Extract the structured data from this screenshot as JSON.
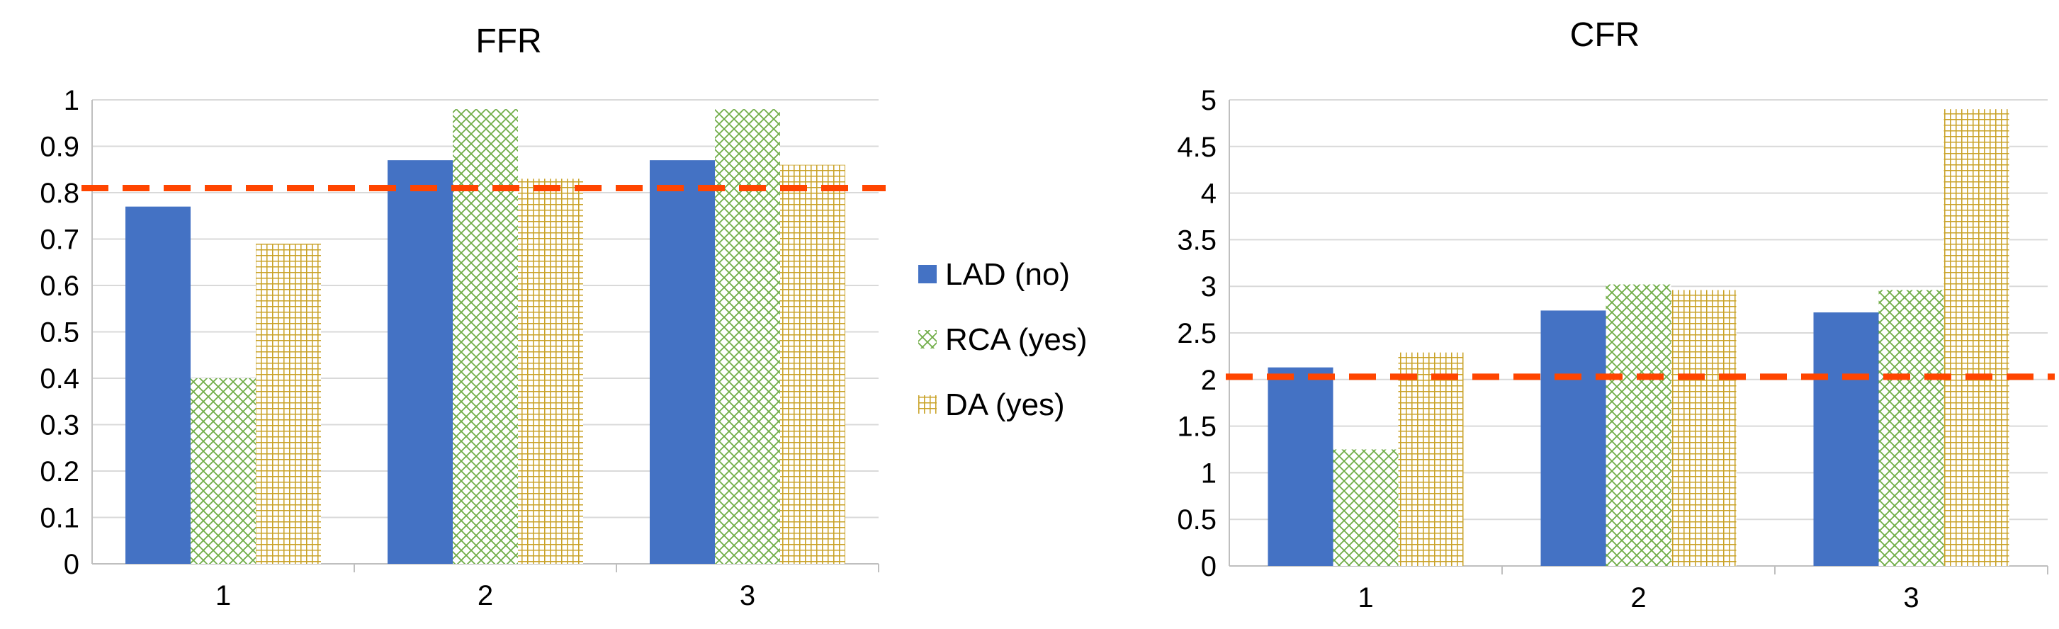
{
  "chart_data": [
    {
      "id": "ffr",
      "type": "bar",
      "title": "FFR",
      "xlabel": "",
      "ylabel": "",
      "categories": [
        "1",
        "2",
        "3"
      ],
      "ylim": [
        0,
        1
      ],
      "yticks": [
        "0",
        "0.1",
        "0.2",
        "0.3",
        "0.4",
        "0.5",
        "0.6",
        "0.7",
        "0.8",
        "0.9",
        "1"
      ],
      "grid": true,
      "threshold": 0.81,
      "series": [
        {
          "name": "LAD (no)",
          "values": [
            0.77,
            0.87,
            0.87
          ],
          "color": "#4472C4",
          "pattern": "solid"
        },
        {
          "name": "RCA (yes)",
          "values": [
            0.4,
            0.98,
            0.98
          ],
          "color": "#70AD47",
          "pattern": "diamond"
        },
        {
          "name": "DA (yes)",
          "values": [
            0.69,
            0.83,
            0.86
          ],
          "color": "#C9A227",
          "pattern": "grid"
        }
      ]
    },
    {
      "id": "cfr",
      "type": "bar",
      "title": "CFR",
      "xlabel": "",
      "ylabel": "",
      "categories": [
        "1",
        "2",
        "3"
      ],
      "ylim": [
        0,
        5
      ],
      "yticks": [
        "0",
        "0.5",
        "1",
        "1.5",
        "2",
        "2.5",
        "3",
        "3.5",
        "4",
        "4.5",
        "5"
      ],
      "grid": true,
      "threshold": 2.03,
      "series": [
        {
          "name": "LAD (no)",
          "values": [
            2.13,
            2.74,
            2.72
          ],
          "color": "#4472C4",
          "pattern": "solid"
        },
        {
          "name": "RCA (yes)",
          "values": [
            1.25,
            3.02,
            2.96
          ],
          "color": "#70AD47",
          "pattern": "diamond"
        },
        {
          "name": "DA (yes)",
          "values": [
            2.29,
            2.96,
            4.9
          ],
          "color": "#C9A227",
          "pattern": "grid"
        }
      ]
    }
  ],
  "legend": {
    "placement": "between-charts",
    "items": [
      {
        "label": "LAD (no)",
        "color": "#4472C4",
        "pattern": "solid"
      },
      {
        "label": "RCA (yes)",
        "color": "#70AD47",
        "pattern": "diamond"
      },
      {
        "label": "DA (yes)",
        "color": "#C9A227",
        "pattern": "grid"
      }
    ]
  },
  "threshold_color": "#FF4500"
}
